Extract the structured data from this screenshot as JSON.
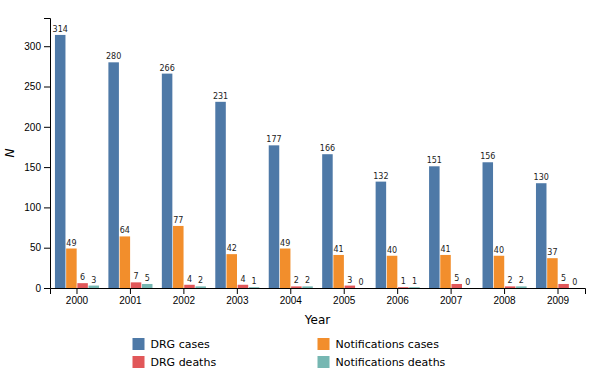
{
  "chart_data": {
    "type": "bar",
    "xlabel": "Year",
    "ylabel": "N",
    "categories": [
      "2000",
      "2001",
      "2002",
      "2003",
      "2004",
      "2005",
      "2006",
      "2007",
      "2008",
      "2009"
    ],
    "series": [
      {
        "name": "DRG cases",
        "values": [
          314,
          280,
          266,
          231,
          177,
          166,
          132,
          151,
          156,
          130
        ]
      },
      {
        "name": "Notifications cases",
        "values": [
          49,
          64,
          77,
          42,
          49,
          41,
          40,
          41,
          40,
          37
        ]
      },
      {
        "name": "DRG deaths",
        "values": [
          6,
          7,
          4,
          4,
          2,
          3,
          1,
          5,
          2,
          5
        ]
      },
      {
        "name": "Notifications deaths",
        "values": [
          3,
          5,
          2,
          1,
          2,
          0,
          1,
          0,
          2,
          0
        ]
      }
    ],
    "ylim": [
      0,
      335
    ],
    "yticks": [
      0,
      50,
      100,
      150,
      200,
      250,
      300
    ],
    "grid": false,
    "legend": "bottom",
    "data_labels": true
  }
}
